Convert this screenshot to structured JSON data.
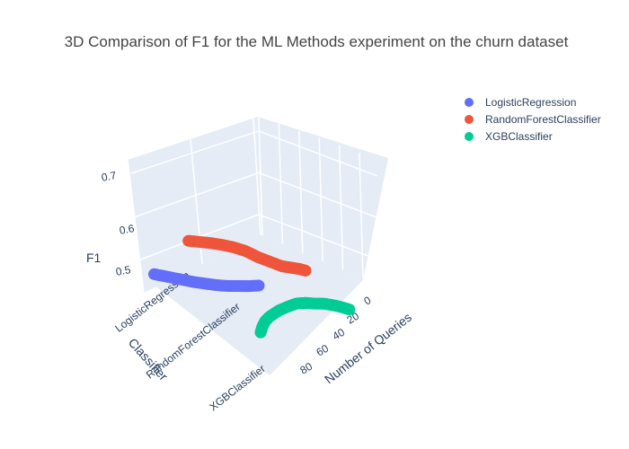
{
  "chart_data": {
    "type": "scatter",
    "subtype": "scatter3d",
    "title": "3D Comparison of F1 for the ML Methods experiment on the churn dataset",
    "axes": {
      "x": {
        "title": "Classifier",
        "type": "category",
        "ticks": [
          "LogisticRegression",
          "RandomForestClassifier",
          "XGBClassifier"
        ]
      },
      "y": {
        "title": "Number of Queries",
        "range": [
          0,
          100
        ],
        "ticks": [
          0,
          20,
          40,
          60,
          80
        ]
      },
      "z": {
        "title": "F1",
        "range": [
          0.45,
          0.73
        ],
        "ticks": [
          0.5,
          0.6,
          0.7
        ]
      }
    },
    "legend": {
      "placement": "top-right"
    },
    "series": [
      {
        "name": "LogisticRegression",
        "color": "#636efa",
        "category_index": 0,
        "queries": [
          0,
          10,
          20,
          30,
          40,
          50,
          60,
          70,
          80,
          90,
          100
        ],
        "f1": [
          0.524,
          0.526,
          0.529,
          0.532,
          0.536,
          0.541,
          0.546,
          0.552,
          0.558,
          0.564,
          0.57
        ]
      },
      {
        "name": "RandomForestClassifier",
        "color": "#ef553b",
        "category_index": 1,
        "queries": [
          0,
          5,
          10,
          15,
          20,
          30,
          40,
          50,
          60,
          70,
          80,
          90,
          100
        ],
        "f1": [
          0.595,
          0.597,
          0.598,
          0.599,
          0.6,
          0.606,
          0.612,
          0.62,
          0.625,
          0.628,
          0.63,
          0.631,
          0.632
        ]
      },
      {
        "name": "XGBClassifier",
        "color": "#00cc96",
        "category_index": 2,
        "queries": [
          0,
          2,
          5,
          10,
          20,
          30,
          40,
          50,
          60,
          70,
          80,
          90,
          100
        ],
        "f1": [
          0.49,
          0.5,
          0.51,
          0.52,
          0.535,
          0.547,
          0.558,
          0.565,
          0.57,
          0.576,
          0.58,
          0.583,
          0.585
        ]
      }
    ]
  }
}
